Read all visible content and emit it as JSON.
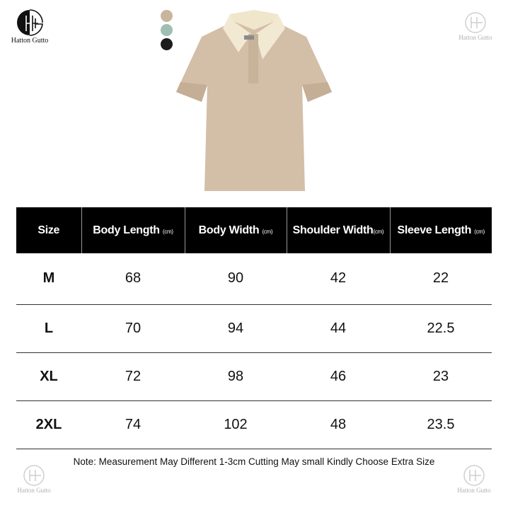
{
  "brand": {
    "name": "Hatton Gutto",
    "logo_letters": "HG"
  },
  "colors": [
    {
      "name": "khaki",
      "hex": "#c9b49d"
    },
    {
      "name": "sage",
      "hex": "#9ebfb2"
    },
    {
      "name": "black",
      "hex": "#1c1c1c"
    }
  ],
  "table": {
    "headers": [
      {
        "label": "Size",
        "unit": ""
      },
      {
        "label": "Body Length",
        "unit": "(cm)"
      },
      {
        "label": "Body Width",
        "unit": "(cm)"
      },
      {
        "label": "Shoulder Width",
        "unit": "(cm)"
      },
      {
        "label": "Sleeve Length",
        "unit": "(cm)"
      }
    ],
    "rows": [
      [
        "M",
        "68",
        "90",
        "42",
        "22"
      ],
      [
        "L",
        "70",
        "94",
        "44",
        "22.5"
      ],
      [
        "XL",
        "72",
        "98",
        "46",
        "23"
      ],
      [
        "2XL",
        "74",
        "102",
        "48",
        "23.5"
      ]
    ]
  },
  "note": "Note:  Measurement  May Different 1-3cm Cutting May small Kindly Choose Extra Size"
}
